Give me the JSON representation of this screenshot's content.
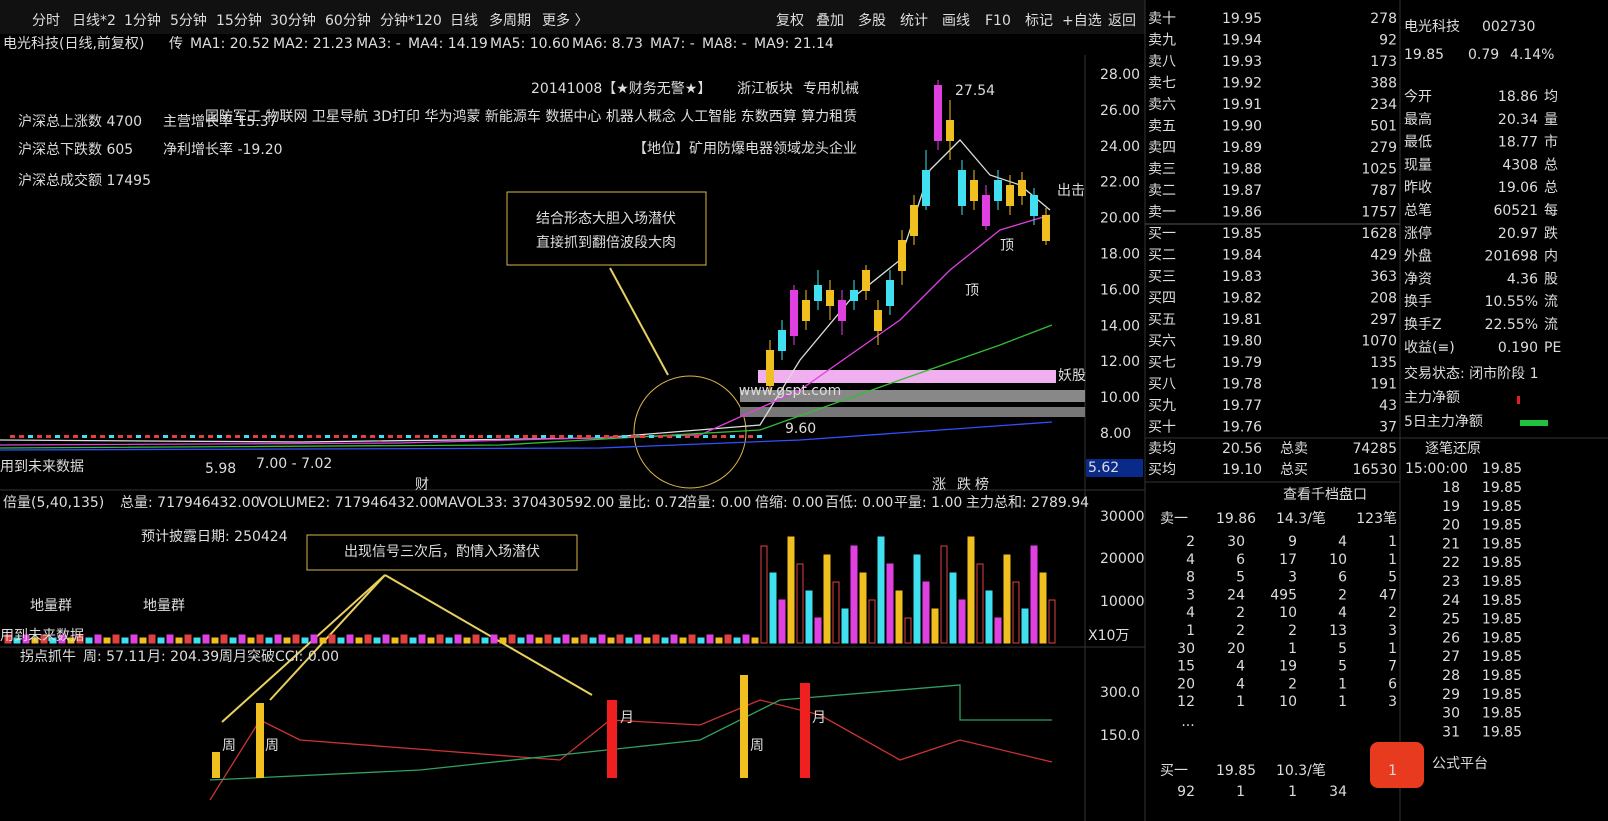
{
  "toolbar": {
    "left": [
      "分时",
      "日线*2",
      "1分钟",
      "5分钟",
      "15分钟",
      "30分钟",
      "60分钟",
      "分钟*120",
      "日线",
      "多周期",
      "更多 〉"
    ],
    "right": [
      "复权",
      "叠加",
      "多股",
      "统计",
      "画线",
      "F10",
      "标记",
      "+自选",
      "返回"
    ]
  },
  "main": {
    "title": "电光科技(日线,前复权)",
    "tag": "传",
    "ma": [
      "MA1: 20.52",
      "MA2: 21.23",
      "MA3: -",
      "MA4: 14.19",
      "MA5: 10.60",
      "MA6: 8.73",
      "MA7: -",
      "MA8: -",
      "MA9: 21.14"
    ],
    "stats": [
      "沪深总上涨数 4700",
      "沪深总下跌数 605",
      "沪深总成交额 17495"
    ],
    "growth": [
      "主营增长率  15.37",
      "净利增长率  -19.20"
    ],
    "tags": [
      "20141008【★财务无警★】",
      "浙江板块",
      "专用机械"
    ],
    "concepts": "国防军工 物联网 卫星导航 3D打印 华为鸿蒙 新能源车 数据中心 机器人概念 人工智能 东数西算 算力租赁",
    "position": "【地位】矿用防爆电器领域龙头企业",
    "callout": [
      "结合形态大胆入场潜伏",
      "直接抓到翻倍波段大肉"
    ],
    "watermark": "www.gspt.com",
    "high": "27.54",
    "low": "5.98",
    "range": "7.00 - 7.02",
    "mid": "9.60",
    "exit": "出击",
    "monster": "妖股",
    "tops": [
      "顶",
      "顶"
    ],
    "current": "5.62",
    "markers": [
      "财",
      "涨",
      "跌",
      "榜"
    ],
    "future": "用到未来数据",
    "yaxis": [
      "28.00",
      "26.00",
      "24.00",
      "22.00",
      "20.00",
      "18.00",
      "16.00",
      "14.00",
      "12.00",
      "10.00",
      "8.00"
    ]
  },
  "volume": {
    "header": [
      "倍量(5,40,135)",
      "总量: 717946432.00",
      "VOLUME2: 717946432.00",
      "MAVOL33: 370430592.00",
      "量比: 0.72",
      "倍量: 0.00",
      "倍缩: 0.00",
      "百低: 0.00",
      "平量: 1.00",
      "主力总和: 2789.94"
    ],
    "disclosure": "预计披露日期:  250424",
    "callout": "出现信号三次后，酌情入场潜伏",
    "groups": [
      "地量群",
      "地量群"
    ],
    "future": "用到未来数据",
    "yaxis": [
      "30000",
      "20000",
      "10000"
    ],
    "unit": "X10万"
  },
  "indicator": {
    "header": [
      "拐点抓牛",
      "周: 57.11",
      "月: 204.39",
      "周月突破CCI: 0.00"
    ],
    "yaxis": [
      "300.0",
      "150.0"
    ],
    "marks": [
      "周",
      "周",
      "月",
      "周",
      "月"
    ]
  },
  "order_book": {
    "sell": [
      [
        "卖十",
        "19.95",
        "278"
      ],
      [
        "卖九",
        "19.94",
        "92"
      ],
      [
        "卖八",
        "19.93",
        "173"
      ],
      [
        "卖七",
        "19.92",
        "388"
      ],
      [
        "卖六",
        "19.91",
        "234"
      ],
      [
        "卖五",
        "19.90",
        "501"
      ],
      [
        "卖四",
        "19.89",
        "279"
      ],
      [
        "卖三",
        "19.88",
        "1025"
      ],
      [
        "卖二",
        "19.87",
        "787"
      ],
      [
        "卖一",
        "19.86",
        "1757"
      ]
    ],
    "buy": [
      [
        "买一",
        "19.85",
        "1628"
      ],
      [
        "买二",
        "19.84",
        "429"
      ],
      [
        "买三",
        "19.83",
        "363"
      ],
      [
        "买四",
        "19.82",
        "208"
      ],
      [
        "买五",
        "19.81",
        "297"
      ],
      [
        "买六",
        "19.80",
        "1070"
      ],
      [
        "买七",
        "19.79",
        "135"
      ],
      [
        "买八",
        "19.78",
        "191"
      ],
      [
        "买九",
        "19.77",
        "43"
      ],
      [
        "买十",
        "19.76",
        "37"
      ]
    ],
    "avg": [
      [
        "卖均",
        "20.56",
        "总卖",
        "74285"
      ],
      [
        "买均",
        "19.10",
        "总买",
        "16530"
      ]
    ]
  },
  "quote": {
    "name": "电光科技",
    "code": "002730",
    "price": "19.85",
    "change": "0.79",
    "pct": "4.14%",
    "rows": [
      [
        "今开",
        "18.86",
        "均"
      ],
      [
        "最高",
        "20.34",
        "量"
      ],
      [
        "最低",
        "18.77",
        "市"
      ],
      [
        "现量",
        "4308",
        "总"
      ],
      [
        "昨收",
        "19.06",
        "总"
      ],
      [
        "总笔",
        "60521",
        "每"
      ],
      [
        "涨停",
        "20.97",
        "跌"
      ],
      [
        "外盘",
        "201698",
        "内"
      ],
      [
        "净资",
        "4.36",
        "股"
      ],
      [
        "换手",
        "10.55%",
        "流"
      ],
      [
        "换手Z",
        "22.55%",
        "流"
      ],
      [
        "收益(≡)",
        "0.190",
        "PE"
      ]
    ],
    "status": "交易状态: 闭市阶段 1",
    "flows": [
      "主力净额",
      "5日主力净额"
    ],
    "restore": "逐笔还原"
  },
  "depth": {
    "link": "查看千档盘口",
    "sell1": [
      "卖一",
      "19.86",
      "14.3/笔",
      "123笔"
    ],
    "grid": [
      [
        "2",
        "30",
        "9",
        "4",
        "1"
      ],
      [
        "4",
        "6",
        "17",
        "10",
        "1"
      ],
      [
        "8",
        "5",
        "3",
        "6",
        "5"
      ],
      [
        "3",
        "24",
        "495",
        "2",
        "47"
      ],
      [
        "4",
        "2",
        "10",
        "4",
        "2"
      ],
      [
        "1",
        "2",
        "2",
        "13",
        "3"
      ],
      [
        "30",
        "20",
        "1",
        "5",
        "1"
      ],
      [
        "15",
        "4",
        "19",
        "5",
        "7"
      ],
      [
        "20",
        "4",
        "2",
        "1",
        "6"
      ],
      [
        "12",
        "1",
        "10",
        "1",
        "3"
      ]
    ],
    "more": "...",
    "buy1": [
      "买一",
      "19.85",
      "10.3/笔",
      "1"
    ],
    "last": [
      "92",
      "1",
      "1",
      "34"
    ]
  },
  "ticks": {
    "time": "15:00:00",
    "first": "19.85",
    "rows": [
      [
        "18",
        "19.85"
      ],
      [
        "19",
        "19.85"
      ],
      [
        "20",
        "19.85"
      ],
      [
        "21",
        "19.85"
      ],
      [
        "22",
        "19.85"
      ],
      [
        "23",
        "19.85"
      ],
      [
        "24",
        "19.85"
      ],
      [
        "25",
        "19.85"
      ],
      [
        "26",
        "19.85"
      ],
      [
        "27",
        "19.85"
      ],
      [
        "28",
        "19.85"
      ],
      [
        "29",
        "19.85"
      ],
      [
        "30",
        "19.85"
      ],
      [
        "31",
        "19.85"
      ]
    ]
  },
  "logo": "公式平台"
}
